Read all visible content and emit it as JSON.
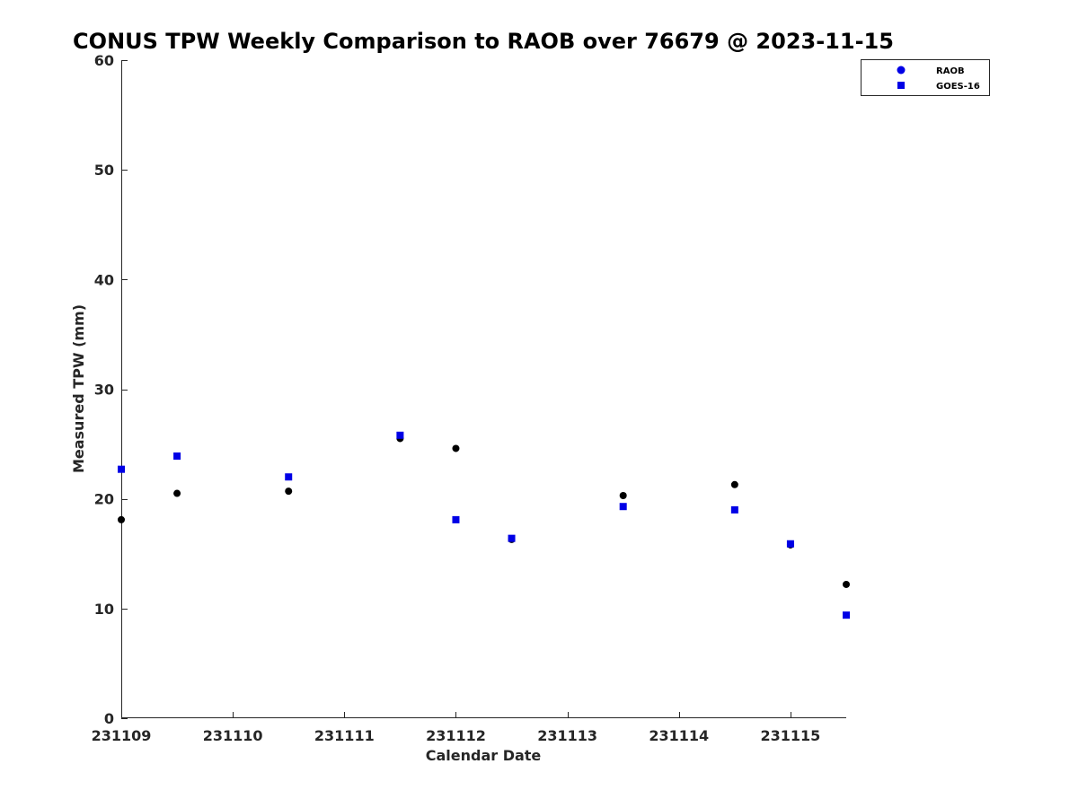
{
  "chart_data": {
    "type": "scatter",
    "title": "CONUS TPW Weekly Comparison to RAOB over 76679 @ 2023-11-15",
    "xlabel": "Calendar Date",
    "ylabel": "Measured TPW (mm)",
    "xlim": [
      0,
      6.5
    ],
    "ylim": [
      0,
      60
    ],
    "x_tick_values": [
      0,
      1,
      2,
      3,
      4,
      5,
      6
    ],
    "x_tick_labels": [
      "231109",
      "231110",
      "231111",
      "231112",
      "231113",
      "231114",
      "231115"
    ],
    "y_ticks": [
      0,
      10,
      20,
      30,
      40,
      50,
      60
    ],
    "grid": false,
    "legend_position": "top-right",
    "series": [
      {
        "name": "RAOB",
        "marker": "circle",
        "color": "#000000",
        "legend_color": "#0000e6",
        "x": [
          0,
          0.5,
          1.5,
          2.5,
          3,
          3.5,
          4.5,
          5.5,
          6,
          6.5
        ],
        "y": [
          18.1,
          20.5,
          20.7,
          25.5,
          24.6,
          16.3,
          20.3,
          21.3,
          15.8,
          12.2
        ]
      },
      {
        "name": "GOES-16",
        "marker": "square",
        "color": "#0000e6",
        "legend_color": "#0000e6",
        "x": [
          0,
          0.5,
          1.5,
          2.5,
          3,
          3.5,
          4.5,
          5.5,
          6,
          6.5
        ],
        "y": [
          22.7,
          23.9,
          22.0,
          25.8,
          18.1,
          16.4,
          19.3,
          19.0,
          15.9,
          9.4
        ]
      }
    ]
  }
}
